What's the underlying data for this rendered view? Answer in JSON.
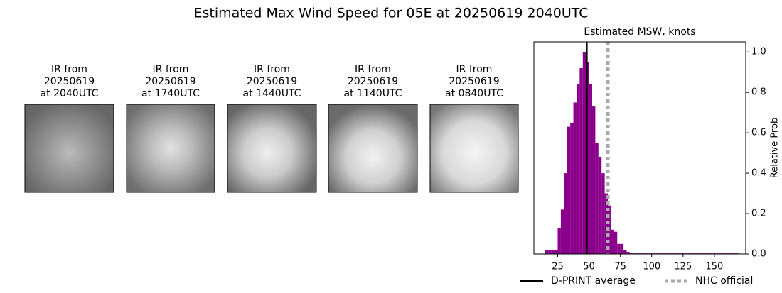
{
  "title": "Estimated Max Wind Speed for 05E at 20250619 2040UTC",
  "panels": [
    {
      "lines": [
        "IR from",
        "20250619",
        "at 2040UTC"
      ]
    },
    {
      "lines": [
        "IR from",
        "20250619",
        "at 1740UTC"
      ]
    },
    {
      "lines": [
        "IR from",
        "20250619",
        "at 1440UTC"
      ]
    },
    {
      "lines": [
        "IR from",
        "20250619",
        "at 1140UTC"
      ]
    },
    {
      "lines": [
        "IR from",
        "20250619",
        "at 0840UTC"
      ]
    }
  ],
  "chart_data": {
    "type": "histogram",
    "title": "Estimated MSW, knots",
    "ylabel": "Relative Prob",
    "color": "#8b008b",
    "bins": [
      15,
      17.5,
      20,
      22.5,
      25,
      27.5,
      30,
      32.5,
      35,
      37.5,
      40,
      42.5,
      45,
      47.5,
      50,
      52.5,
      55,
      57.5,
      60,
      62.5,
      65,
      67.5,
      70,
      72.5,
      75,
      77.5,
      80,
      82.5,
      170
    ],
    "values": [
      0.02,
      0.02,
      0.02,
      0.02,
      0.13,
      0.22,
      0.4,
      0.63,
      0.65,
      0.75,
      0.84,
      0.92,
      1.0,
      0.95,
      0.84,
      0.73,
      0.55,
      0.48,
      0.4,
      0.3,
      0.24,
      0.12,
      0.11,
      0.05,
      0.05,
      0.02,
      0.01,
      0.003
    ],
    "xlim": [
      6,
      175
    ],
    "ylim": [
      0,
      1.05
    ],
    "xticks": [
      25,
      50,
      75,
      100,
      125,
      150
    ],
    "yticks": [
      {
        "value": 0,
        "label": "0.0"
      },
      {
        "value": 0.2,
        "label": "0.2"
      },
      {
        "value": 0.4,
        "label": "0.4"
      },
      {
        "value": 0.6,
        "label": "0.6"
      },
      {
        "value": 0.8,
        "label": "0.8"
      },
      {
        "value": 1,
        "label": "1.0"
      }
    ],
    "reference_lines": [
      {
        "name": "D-PRINT average",
        "value": 48.3,
        "color": "#000000",
        "style": "solid"
      },
      {
        "name": "NHC official",
        "value": 65,
        "color": "#aaaaaa",
        "style": "dotted"
      }
    ]
  }
}
